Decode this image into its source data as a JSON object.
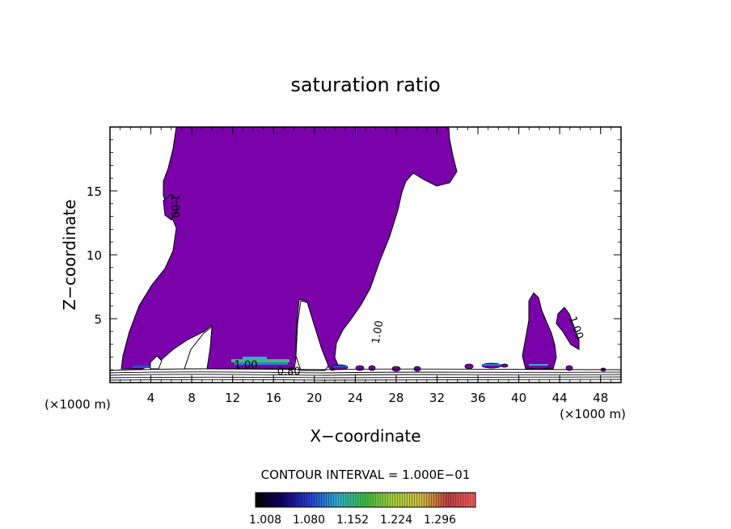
{
  "chart_data": {
    "type": "contour",
    "title": "saturation ratio",
    "xlabel": "X−coordinate",
    "ylabel": "Z−coordinate",
    "x_unit_label": "(×1000 m)",
    "x_unit_label_right": "(×1000 m)",
    "xlim": [
      0,
      50
    ],
    "ylim": [
      0,
      20
    ],
    "x_ticks": [
      4,
      8,
      12,
      16,
      20,
      24,
      28,
      32,
      36,
      40,
      44,
      48
    ],
    "x_tick_labels": [
      "4",
      "8",
      "12",
      "16",
      "20",
      "24",
      "28",
      "32",
      "36",
      "40",
      "44",
      "48"
    ],
    "y_ticks": [
      5,
      10,
      15
    ],
    "y_tick_labels": [
      "5",
      "10",
      "15"
    ],
    "fill_color": "#7a00aa",
    "contour_labels": [
      {
        "text": "1.00",
        "x": 6.0,
        "y": 13.8,
        "angle": 90
      },
      {
        "text": "1.00",
        "x": 26.5,
        "y": 3.9,
        "angle": -80
      },
      {
        "text": "1.00",
        "x": 45.3,
        "y": 4.2,
        "angle": 70
      },
      {
        "text": "1.00",
        "x": 13.3,
        "y": 1.1,
        "angle": 0
      },
      {
        "text": "0.80",
        "x": 17.5,
        "y": 0.6,
        "angle": 0
      }
    ],
    "contour_interval_text": "CONTOUR INTERVAL = 1.000E−01",
    "colorbar": {
      "tick_labels": [
        "1.008",
        "1.080",
        "1.152",
        "1.224",
        "1.296"
      ],
      "colors": [
        "#000000",
        "#14006e",
        "#2840d8",
        "#30b0d0",
        "#40c040",
        "#a8d040",
        "#d0c040",
        "#c04040",
        "#ff6060"
      ]
    }
  }
}
